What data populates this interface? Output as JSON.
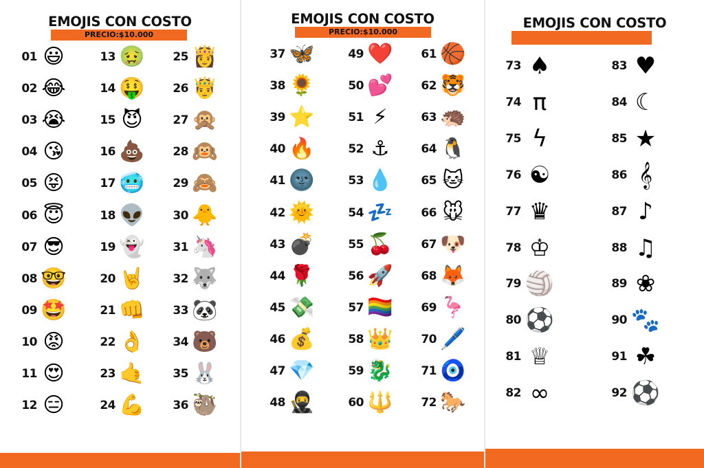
{
  "pages": [
    {
      "title": "EMOJIS CON COSTO",
      "price": "PRECIO:$10.000",
      "items": [
        {
          "n": "01",
          "e": "😃"
        },
        {
          "n": "02",
          "e": "😂"
        },
        {
          "n": "03",
          "e": "😭"
        },
        {
          "n": "04",
          "e": "😘"
        },
        {
          "n": "05",
          "e": "😝"
        },
        {
          "n": "06",
          "e": "😇"
        },
        {
          "n": "07",
          "e": "😎"
        },
        {
          "n": "08",
          "e": "🤓"
        },
        {
          "n": "09",
          "e": "🤩"
        },
        {
          "n": "10",
          "e": "😡"
        },
        {
          "n": "11",
          "e": "😍"
        },
        {
          "n": "12",
          "e": "😑"
        },
        {
          "n": "13",
          "e": "🤢"
        },
        {
          "n": "14",
          "e": "🤑"
        },
        {
          "n": "15",
          "e": "😈"
        },
        {
          "n": "16",
          "e": "💩"
        },
        {
          "n": "17",
          "e": "🥶"
        },
        {
          "n": "18",
          "e": "👽"
        },
        {
          "n": "19",
          "e": "👻"
        },
        {
          "n": "20",
          "e": "🤘"
        },
        {
          "n": "21",
          "e": "👊"
        },
        {
          "n": "22",
          "e": "👌"
        },
        {
          "n": "23",
          "e": "🤙"
        },
        {
          "n": "24",
          "e": "💪"
        },
        {
          "n": "25",
          "e": "👸"
        },
        {
          "n": "26",
          "e": "🤴"
        },
        {
          "n": "27",
          "e": "🙊"
        },
        {
          "n": "28",
          "e": "🙉"
        },
        {
          "n": "29",
          "e": "🙈"
        },
        {
          "n": "30",
          "e": "🐥"
        },
        {
          "n": "31",
          "e": "🦄"
        },
        {
          "n": "32",
          "e": "🐺"
        },
        {
          "n": "33",
          "e": "🐼"
        },
        {
          "n": "34",
          "e": "🐻"
        },
        {
          "n": "35",
          "e": "🐰"
        },
        {
          "n": "36",
          "e": "🦥"
        }
      ]
    },
    {
      "title": "EMOJIS CON COSTO",
      "price": "PRECIO:$10.000",
      "items": [
        {
          "n": "37",
          "e": "🦋"
        },
        {
          "n": "38",
          "e": "🌻"
        },
        {
          "n": "39",
          "e": "⭐"
        },
        {
          "n": "40",
          "e": "🔥"
        },
        {
          "n": "41",
          "e": "🌚"
        },
        {
          "n": "42",
          "e": "🌞"
        },
        {
          "n": "43",
          "e": "💣"
        },
        {
          "n": "44",
          "e": "🌹"
        },
        {
          "n": "45",
          "e": "💸"
        },
        {
          "n": "46",
          "e": "💰"
        },
        {
          "n": "47",
          "e": "💎"
        },
        {
          "n": "48",
          "e": "🥷"
        },
        {
          "n": "49",
          "e": "❤️"
        },
        {
          "n": "50",
          "e": "💕"
        },
        {
          "n": "51",
          "e": "⚡"
        },
        {
          "n": "52",
          "e": "⚓"
        },
        {
          "n": "53",
          "e": "💧"
        },
        {
          "n": "54",
          "e": "💤"
        },
        {
          "n": "55",
          "e": "🍒"
        },
        {
          "n": "56",
          "e": "🚀"
        },
        {
          "n": "57",
          "e": "🏳️‍🌈"
        },
        {
          "n": "58",
          "e": "👑"
        },
        {
          "n": "59",
          "e": "🐉"
        },
        {
          "n": "60",
          "e": "🔱"
        },
        {
          "n": "61",
          "e": "🏀"
        },
        {
          "n": "62",
          "e": "🐯"
        },
        {
          "n": "63",
          "e": "🦔"
        },
        {
          "n": "64",
          "e": "🐧"
        },
        {
          "n": "65",
          "e": "🐱"
        },
        {
          "n": "66",
          "e": "🐭"
        },
        {
          "n": "67",
          "e": "🐶"
        },
        {
          "n": "68",
          "e": "🦊"
        },
        {
          "n": "69",
          "e": "🦩"
        },
        {
          "n": "70",
          "e": "🖊️"
        },
        {
          "n": "71",
          "e": "🧿"
        },
        {
          "n": "72",
          "e": "🐎"
        }
      ]
    },
    {
      "title": "EMOJIS CON COSTO",
      "items": [
        {
          "n": "73",
          "e": "♠"
        },
        {
          "n": "74",
          "e": "π"
        },
        {
          "n": "75",
          "e": "ϟ"
        },
        {
          "n": "76",
          "e": "☯"
        },
        {
          "n": "77",
          "e": "♛"
        },
        {
          "n": "78",
          "e": "♔"
        },
        {
          "n": "79",
          "e": "🏐"
        },
        {
          "n": "80",
          "e": "⚽"
        },
        {
          "n": "81",
          "e": "♕"
        },
        {
          "n": "82",
          "e": "∞"
        },
        {
          "n": "83",
          "e": "♥"
        },
        {
          "n": "84",
          "e": "☾"
        },
        {
          "n": "85",
          "e": "★"
        },
        {
          "n": "86",
          "e": "𝄞"
        },
        {
          "n": "87",
          "e": "♪"
        },
        {
          "n": "88",
          "e": "♫"
        },
        {
          "n": "89",
          "e": "❀"
        },
        {
          "n": "90",
          "e": "🐾"
        },
        {
          "n": "91",
          "e": "☘"
        },
        {
          "n": "92",
          "e": "⚽"
        }
      ]
    }
  ]
}
